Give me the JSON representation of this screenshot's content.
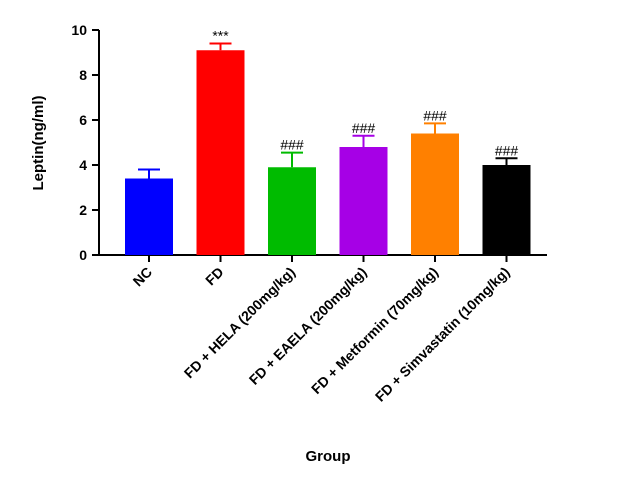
{
  "chart_data": {
    "type": "bar",
    "title": "",
    "xlabel": "Group",
    "ylabel": "Leptin(ng/ml)",
    "ylim": [
      0,
      10
    ],
    "yticks": [
      "0",
      "2",
      "4",
      "6",
      "8",
      "10"
    ],
    "grid": false,
    "categories": [
      "NC",
      "FD",
      "FD + HELA (200mg/kg)",
      "FD + EAELA (200mg/kg)",
      "FD + Metformin (70mg/kg)",
      "FD + Simvastatin (10mg/kg)"
    ],
    "values": [
      3.4,
      9.1,
      3.9,
      4.8,
      5.4,
      4.0
    ],
    "errors": [
      0.4,
      0.3,
      0.65,
      0.5,
      0.45,
      0.3
    ],
    "annotations": [
      "",
      "***",
      "###",
      "###",
      "###",
      "###"
    ],
    "colors": [
      "#0000ff",
      "#ff0000",
      "#00bb00",
      "#a600e6",
      "#ff8000",
      "#000000"
    ]
  }
}
